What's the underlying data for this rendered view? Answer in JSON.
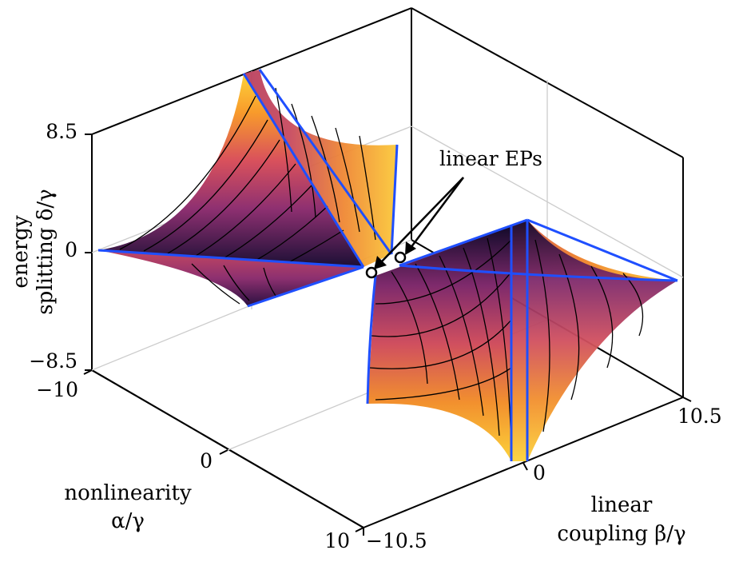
{
  "chart_data": {
    "type": "surface3d",
    "colormap": "inferno",
    "edge_color": "#1f4fff",
    "x_axis": {
      "label_line1": "nonlinearity",
      "label_line2": "α/γ",
      "range": [
        -10,
        10
      ],
      "ticks": [
        "−10",
        "0",
        "10"
      ]
    },
    "y_axis": {
      "label_line1": "linear",
      "label_line2": "coupling β/γ",
      "range": [
        -10.5,
        10.5
      ],
      "ticks": [
        "−10.5",
        "0",
        "10.5"
      ]
    },
    "z_axis": {
      "label_line1": "energy",
      "label_line2": "splitting δ/γ",
      "range": [
        -8.5,
        8.5
      ],
      "ticks": [
        "8.5",
        "0",
        "−8.5"
      ]
    },
    "annotation": {
      "text": "linear EPs",
      "points": [
        {
          "alpha": 0,
          "beta": -2,
          "delta": 0
        },
        {
          "alpha": 0,
          "beta": 2,
          "delta": 0
        }
      ]
    },
    "grid": true
  }
}
